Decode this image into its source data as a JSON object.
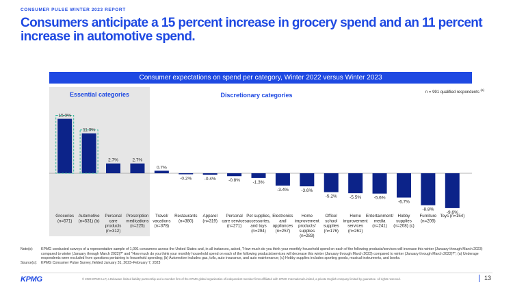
{
  "header": {
    "report_label": "CONSUMER PULSE WINTER 2023 REPORT",
    "headline": "Consumers anticipate a 15 percent increase in grocery spend and an 11 percent increase in automotive spend."
  },
  "panel": {
    "essential_label": "Essential categories",
    "discretionary_label": "Discretionary categories",
    "respondents": "n = 991 qualified respondents",
    "respondents_note": "(a)"
  },
  "chart_data": {
    "type": "bar",
    "title": "Consumer expectations on spend per category, Winter 2022 versus Winter 2023",
    "categories": [
      [
        "Groceries",
        "(n=571)"
      ],
      [
        "Automotive",
        "(n=531) (b)"
      ],
      [
        "Personal",
        "care",
        "products",
        "(n=312)"
      ],
      [
        "Prescription",
        "medications",
        "(n=225)"
      ],
      [
        "Travel/",
        "vacations",
        "(n=378)"
      ],
      [
        "Restaurants",
        "(n=380)"
      ],
      [
        "Apparel",
        "(n=319)"
      ],
      [
        "Personal",
        "care services",
        "(n=271)"
      ],
      [
        "Pet supplies,",
        "accessories,",
        "and toys",
        "(n=294)"
      ],
      [
        "Electronics",
        "and",
        "appliances",
        "(n=257)"
      ],
      [
        "Home",
        "improvement",
        "products/",
        "supplies",
        "(n=283)"
      ],
      [
        "Office/",
        "school",
        "supplies",
        "(n=176)"
      ],
      [
        "Home",
        "improvement",
        "services",
        "(n=261)"
      ],
      [
        "Entertainment/",
        "media",
        "(n=241)"
      ],
      [
        "Hobby",
        "supplies",
        "(n=208) (c)"
      ],
      [
        "Furniture",
        "(n=209)"
      ],
      [
        "Toys (n=154)"
      ]
    ],
    "values": [
      15.0,
      11.0,
      2.7,
      2.7,
      0.7,
      -0.2,
      -0.4,
      -0.8,
      -1.3,
      -3.4,
      -3.6,
      -5.2,
      -5.5,
      -5.6,
      -6.7,
      -8.8,
      -9.6
    ],
    "labels": [
      "15.0%",
      "11.0%",
      "2.7%",
      "2.7%",
      "0.7%",
      "-0.2%",
      "-0.4%",
      "-0.8%",
      "-1.3%",
      "-3.4%",
      "-3.6%",
      "-5.2%",
      "-5.5%",
      "-5.6%",
      "-6.7%",
      "-8.8%",
      "-9.6%"
    ],
    "highlighted": [
      0,
      1
    ],
    "essential_count": 4,
    "ylim": [
      -10.5,
      16
    ],
    "colors": {
      "bar": "#0c2389",
      "highlight_border": "#2fb79a",
      "essential_bg": "#e6e6e6",
      "banner": "#1e49e2"
    }
  },
  "notes": {
    "notes_key": "Note(s):",
    "notes_text": "KPMG conducted surveys of a representative sample of 1,091 consumers across the United States and, in all instances, asked, \"How much do you think your monthly household spend on each of the following products/services will increase this winter (January through March 2023) compared to winter (January through March 2022)?\" and \"How much do you think your monthly household spend on each of the following products/services will decrease this winter (January through March 2023) compared to winter (January through March 2022)?\"; (a) Underage respondents were excluded from questions pertaining to household spending; (b) Automotive includes gas, tolls, auto insurance, and auto maintenance; (c) Hobby supplies includes sporting goods, musical instruments, and books.",
    "source_key": "Source(s):",
    "source_text": "KPMG Consumer Pulse Survey, fielded January 31, 2023–February 7, 2023"
  },
  "footer": {
    "logo": "KPMG",
    "legal": "© 2023 KPMG LLP, a Delaware limited liability partnership and a member firm of the KPMG global organization of independent member firms affiliated with KPMG International Limited, a private English company limited by guarantee. All rights reserved.",
    "page": "13"
  }
}
